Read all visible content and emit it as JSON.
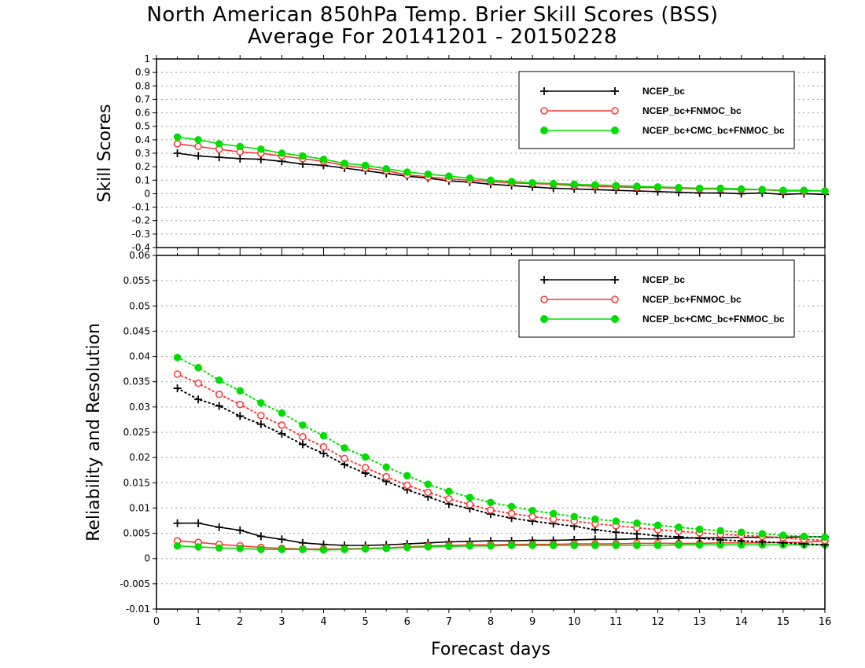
{
  "title": "North American 850hPa Temp. Brier Skill Scores (BSS)",
  "subtitle": "Average For 20141201 - 20150228",
  "xlabel": "Forecast days",
  "colors": {
    "ncep": "#000000",
    "fnmoc": "#ff3333",
    "cmc": "#00dd00",
    "grid": "#999999"
  },
  "chart_data": [
    {
      "type": "line",
      "panel": "top",
      "ylabel": "Skill Scores",
      "xlim": [
        0,
        16
      ],
      "ylim": [
        -0.4,
        1
      ],
      "xticks": [
        0,
        1,
        2,
        3,
        4,
        5,
        6,
        7,
        8,
        9,
        10,
        11,
        12,
        13,
        14,
        15,
        16
      ],
      "yticks": [
        -0.4,
        -0.3,
        -0.2,
        -0.1,
        0,
        0.1,
        0.2,
        0.3,
        0.4,
        0.5,
        0.6,
        0.7,
        0.8,
        0.9,
        1
      ],
      "ytick_labels": [
        "-0.4",
        "-0.3",
        "-0.2",
        "-0.1",
        "0",
        "0.1",
        "0.2",
        "0.3",
        "0.4",
        "0.5",
        "0.6",
        "0.7",
        "0.8",
        "0.9",
        "1"
      ],
      "grid": true,
      "legend": "top-right",
      "x": [
        0.5,
        1,
        1.5,
        2,
        2.5,
        3,
        3.5,
        4,
        4.5,
        5,
        5.5,
        6,
        6.5,
        7,
        7.5,
        8,
        8.5,
        9,
        9.5,
        10,
        10.5,
        11,
        11.5,
        12,
        12.5,
        13,
        13.5,
        14,
        14.5,
        15,
        15.5,
        16
      ],
      "series": [
        {
          "name": "NCEP_bc",
          "marker": "plus",
          "style": "solid",
          "color_key": "ncep",
          "values": [
            0.3,
            0.28,
            0.27,
            0.26,
            0.255,
            0.24,
            0.22,
            0.21,
            0.19,
            0.17,
            0.15,
            0.13,
            0.115,
            0.095,
            0.085,
            0.07,
            0.06,
            0.05,
            0.04,
            0.035,
            0.03,
            0.025,
            0.02,
            0.015,
            0.01,
            0.005,
            0.005,
            0.0,
            0.005,
            -0.005,
            0.0,
            -0.005
          ]
        },
        {
          "name": "NCEP_bc+FNMOC_bc",
          "marker": "circle-open",
          "style": "solid",
          "color_key": "fnmoc",
          "values": [
            0.37,
            0.35,
            0.33,
            0.31,
            0.3,
            0.28,
            0.26,
            0.24,
            0.21,
            0.19,
            0.17,
            0.14,
            0.125,
            0.11,
            0.1,
            0.09,
            0.08,
            0.075,
            0.07,
            0.06,
            0.055,
            0.05,
            0.045,
            0.045,
            0.04,
            0.035,
            0.035,
            0.03,
            0.03,
            0.02,
            0.02,
            0.02
          ]
        },
        {
          "name": "NCEP_bc+CMC_bc+FNMOC_bc",
          "marker": "circle-filled",
          "style": "solid",
          "color_key": "cmc",
          "values": [
            0.42,
            0.4,
            0.37,
            0.35,
            0.33,
            0.3,
            0.28,
            0.255,
            0.225,
            0.21,
            0.185,
            0.16,
            0.145,
            0.13,
            0.115,
            0.1,
            0.09,
            0.08,
            0.075,
            0.07,
            0.065,
            0.06,
            0.055,
            0.05,
            0.045,
            0.04,
            0.04,
            0.035,
            0.03,
            0.025,
            0.025,
            0.02
          ]
        }
      ]
    },
    {
      "type": "line",
      "panel": "bottom",
      "ylabel": "Reliability and Resolution",
      "xlim": [
        0,
        16
      ],
      "ylim": [
        -0.01,
        0.06
      ],
      "xticks": [
        0,
        1,
        2,
        3,
        4,
        5,
        6,
        7,
        8,
        9,
        10,
        11,
        12,
        13,
        14,
        15,
        16
      ],
      "yticks": [
        -0.01,
        -0.005,
        0,
        0.005,
        0.01,
        0.015,
        0.02,
        0.025,
        0.03,
        0.035,
        0.04,
        0.045,
        0.05,
        0.055,
        0.06
      ],
      "ytick_labels": [
        "-0.01",
        "-0.005",
        "0",
        "0.005",
        "0.01",
        "0.015",
        "0.02",
        "0.025",
        "0.03",
        "0.035",
        "0.04",
        "0.045",
        "0.05",
        "0.055",
        "0.06"
      ],
      "grid": true,
      "legend": "top-right",
      "x": [
        0.5,
        1,
        1.5,
        2,
        2.5,
        3,
        3.5,
        4,
        4.5,
        5,
        5.5,
        6,
        6.5,
        7,
        7.5,
        8,
        8.5,
        9,
        9.5,
        10,
        10.5,
        11,
        11.5,
        12,
        12.5,
        13,
        13.5,
        14,
        14.5,
        15,
        15.5,
        16
      ],
      "series": [
        {
          "name": "NCEP_bc",
          "marker": "plus",
          "style": "solid",
          "color_key": "ncep",
          "metric": "reliability",
          "values": [
            0.007,
            0.007,
            0.0062,
            0.0056,
            0.0044,
            0.0038,
            0.0031,
            0.0028,
            0.0026,
            0.0026,
            0.0027,
            0.0029,
            0.0031,
            0.0033,
            0.0034,
            0.0035,
            0.0035,
            0.0036,
            0.0036,
            0.0037,
            0.0038,
            0.0038,
            0.0039,
            0.0039,
            0.004,
            0.0041,
            0.0041,
            0.0042,
            0.0042,
            0.0042,
            0.0043,
            0.0043
          ]
        },
        {
          "name": "NCEP_bc+FNMOC_bc",
          "marker": "circle-open",
          "style": "solid",
          "color_key": "fnmoc",
          "metric": "reliability",
          "values": [
            0.0035,
            0.0032,
            0.0028,
            0.0025,
            0.0022,
            0.002,
            0.0019,
            0.0019,
            0.0019,
            0.002,
            0.0021,
            0.0023,
            0.0025,
            0.0026,
            0.0027,
            0.0027,
            0.0028,
            0.0028,
            0.0028,
            0.0029,
            0.0029,
            0.0029,
            0.003,
            0.003,
            0.003,
            0.003,
            0.0031,
            0.0031,
            0.0031,
            0.0032,
            0.0032,
            0.0035
          ]
        },
        {
          "name": "NCEP_bc+CMC_bc+FNMOC_bc",
          "marker": "circle-filled",
          "style": "solid",
          "color_key": "cmc",
          "metric": "reliability",
          "values": [
            0.0025,
            0.0023,
            0.0021,
            0.002,
            0.0018,
            0.0018,
            0.0018,
            0.0017,
            0.0018,
            0.0019,
            0.002,
            0.0022,
            0.0023,
            0.0024,
            0.0025,
            0.0025,
            0.0026,
            0.0026,
            0.0026,
            0.0026,
            0.0026,
            0.0026,
            0.0026,
            0.0026,
            0.0027,
            0.0027,
            0.0027,
            0.0027,
            0.0027,
            0.0027,
            0.0027,
            0.0027
          ]
        },
        {
          "name": "NCEP_bc",
          "marker": "plus",
          "style": "dotted",
          "color_key": "ncep",
          "metric": "resolution",
          "values": [
            0.0337,
            0.0315,
            0.0302,
            0.0282,
            0.0266,
            0.0247,
            0.0226,
            0.0208,
            0.0186,
            0.0169,
            0.0153,
            0.0136,
            0.0122,
            0.0108,
            0.0099,
            0.0088,
            0.008,
            0.0074,
            0.0069,
            0.0064,
            0.0057,
            0.0052,
            0.0049,
            0.0045,
            0.0043,
            0.004,
            0.0037,
            0.0035,
            0.0033,
            0.0031,
            0.0029,
            0.0027
          ]
        },
        {
          "name": "NCEP_bc+FNMOC_bc",
          "marker": "circle-open",
          "style": "dotted",
          "color_key": "fnmoc",
          "metric": "resolution",
          "values": [
            0.0365,
            0.0347,
            0.0325,
            0.0305,
            0.0283,
            0.0264,
            0.0241,
            0.0221,
            0.0198,
            0.018,
            0.0162,
            0.0145,
            0.0131,
            0.0118,
            0.0107,
            0.0096,
            0.0089,
            0.0083,
            0.0078,
            0.0074,
            0.0069,
            0.0065,
            0.0061,
            0.0057,
            0.0054,
            0.0051,
            0.0048,
            0.0046,
            0.0044,
            0.0041,
            0.0038,
            0.0036
          ]
        },
        {
          "name": "NCEP_bc+CMC_bc+FNMOC_bc",
          "marker": "circle-filled",
          "style": "dotted",
          "color_key": "cmc",
          "metric": "resolution",
          "values": [
            0.0398,
            0.0378,
            0.0353,
            0.0332,
            0.0308,
            0.0288,
            0.0264,
            0.0243,
            0.0219,
            0.0201,
            0.0181,
            0.0164,
            0.0147,
            0.0133,
            0.0121,
            0.0111,
            0.0103,
            0.0095,
            0.0089,
            0.0083,
            0.0078,
            0.0074,
            0.007,
            0.0066,
            0.0062,
            0.0058,
            0.0055,
            0.0052,
            0.0049,
            0.0046,
            0.0044,
            0.0042
          ]
        }
      ]
    }
  ]
}
